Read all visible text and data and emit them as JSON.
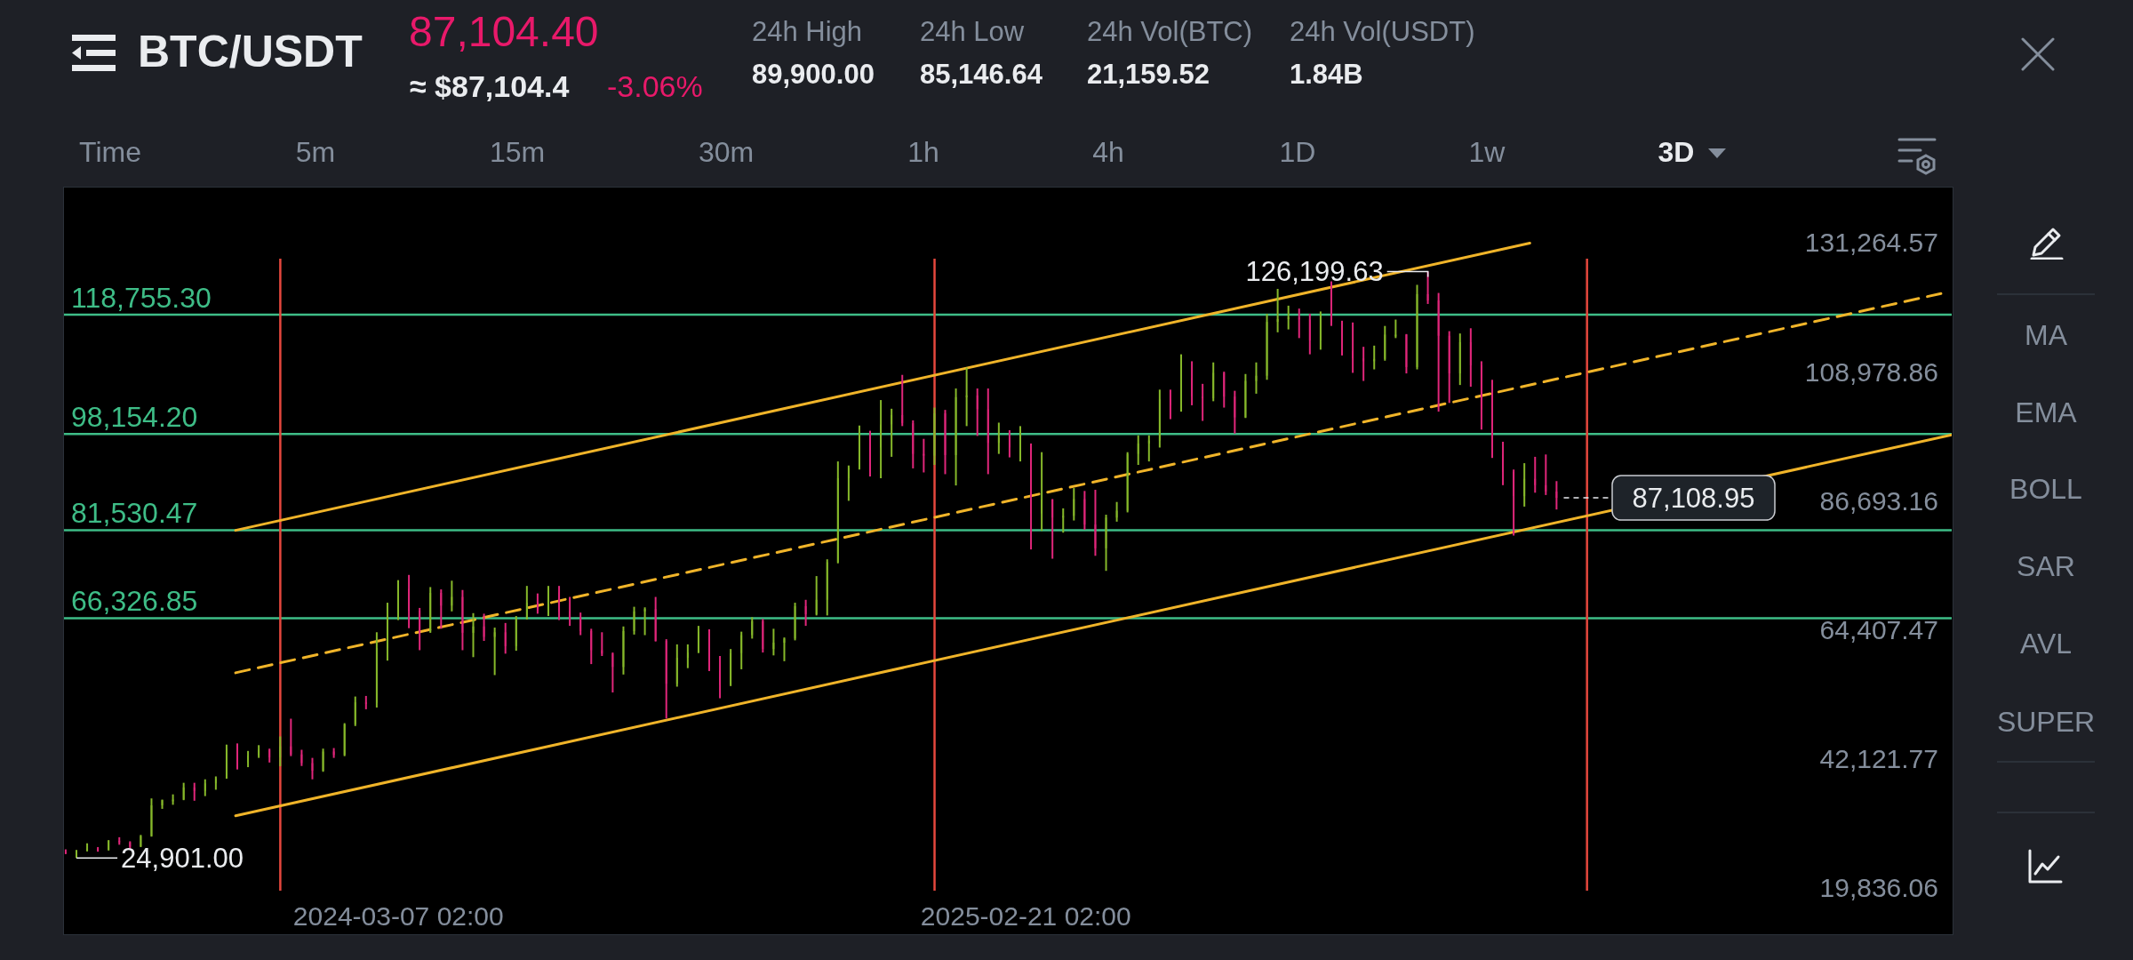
{
  "chart_data": {
    "type": "candlestick",
    "title": "BTC/USDT",
    "x": [
      "2023-09-03",
      "2023-09-09",
      "2023-09-15",
      "2023-09-21",
      "2023-09-27",
      "2023-10-03",
      "2023-10-09",
      "2023-10-15",
      "2023-10-21",
      "2023-10-27",
      "2023-11-02",
      "2023-11-08",
      "2023-11-14",
      "2023-11-20",
      "2023-11-26",
      "2023-12-02",
      "2023-12-08",
      "2023-12-14",
      "2023-12-20",
      "2023-12-26",
      "2024-01-01",
      "2024-01-07",
      "2024-01-13",
      "2024-01-19",
      "2024-01-25",
      "2024-01-31",
      "2024-02-06",
      "2024-02-12",
      "2024-02-18",
      "2024-02-24",
      "2024-03-01",
      "2024-03-07",
      "2024-03-13",
      "2024-03-19",
      "2024-03-25",
      "2024-03-31",
      "2024-04-06",
      "2024-04-12",
      "2024-04-18",
      "2024-04-24",
      "2024-04-30",
      "2024-05-06",
      "2024-05-12",
      "2024-05-18",
      "2024-05-24",
      "2024-05-30",
      "2024-06-05",
      "2024-06-11",
      "2024-06-17",
      "2024-06-23",
      "2024-06-29",
      "2024-07-05",
      "2024-07-11",
      "2024-07-17",
      "2024-07-23",
      "2024-07-29",
      "2024-08-04",
      "2024-08-10",
      "2024-08-16",
      "2024-08-22",
      "2024-08-28",
      "2024-09-03",
      "2024-09-09",
      "2024-09-15",
      "2024-09-21",
      "2024-09-27",
      "2024-10-03",
      "2024-10-09",
      "2024-10-15",
      "2024-10-21",
      "2024-10-27",
      "2024-11-02",
      "2024-11-08",
      "2024-11-14",
      "2024-11-20",
      "2024-11-26",
      "2024-12-02",
      "2024-12-08",
      "2024-12-14",
      "2024-12-20",
      "2024-12-26",
      "2025-01-01",
      "2025-01-07",
      "2025-01-13",
      "2025-01-19",
      "2025-01-25",
      "2025-01-31",
      "2025-02-06",
      "2025-02-12",
      "2025-02-18",
      "2025-02-24",
      "2025-03-02",
      "2025-03-08",
      "2025-03-14",
      "2025-03-20",
      "2025-03-26",
      "2025-04-01",
      "2025-04-07",
      "2025-04-13",
      "2025-04-19",
      "2025-04-25",
      "2025-05-01",
      "2025-05-07",
      "2025-05-13",
      "2025-05-19",
      "2025-05-25",
      "2025-05-31",
      "2025-06-06",
      "2025-06-12",
      "2025-06-18",
      "2025-06-24",
      "2025-06-30",
      "2025-07-06",
      "2025-07-12",
      "2025-07-18",
      "2025-07-24",
      "2025-07-30",
      "2025-08-05",
      "2025-08-11",
      "2025-08-17",
      "2025-08-23",
      "2025-08-29",
      "2025-09-04",
      "2025-09-10",
      "2025-09-16",
      "2025-09-22",
      "2025-09-28",
      "2025-10-04",
      "2025-10-10",
      "2025-10-16",
      "2025-10-22",
      "2025-10-28",
      "2025-11-03",
      "2025-11-09",
      "2025-11-15",
      "2025-11-21",
      "2025-11-27",
      "2025-12-03",
      "2025-12-09",
      "2025-12-15"
    ],
    "ohlc": [
      [
        25950,
        26400,
        25600,
        25900
      ],
      [
        25900,
        26300,
        24901,
        26200
      ],
      [
        26200,
        27450,
        26050,
        26550
      ],
      [
        26550,
        26800,
        26000,
        26350
      ],
      [
        26350,
        28000,
        26200,
        27900
      ],
      [
        27900,
        28500,
        27200,
        27600
      ],
      [
        27600,
        27800,
        26550,
        26900
      ],
      [
        26900,
        28900,
        26800,
        28700
      ],
      [
        28700,
        35200,
        28600,
        34000
      ],
      [
        34000,
        35000,
        33400,
        34900
      ],
      [
        34900,
        35900,
        34100,
        35000
      ],
      [
        35000,
        37900,
        34900,
        37100
      ],
      [
        37100,
        37900,
        34800,
        36500
      ],
      [
        36500,
        38500,
        35600,
        37800
      ],
      [
        37800,
        39000,
        36700,
        38700
      ],
      [
        38700,
        44500,
        38600,
        43800
      ],
      [
        43800,
        44700,
        40200,
        41400
      ],
      [
        41400,
        43400,
        40600,
        42600
      ],
      [
        42600,
        44400,
        42200,
        43600
      ],
      [
        43600,
        43800,
        41400,
        42300
      ],
      [
        42300,
        45900,
        40750,
        44200
      ],
      [
        44200,
        48970,
        42500,
        42800
      ],
      [
        42800,
        43600,
        40800,
        41300
      ],
      [
        41300,
        42200,
        38500,
        40000
      ],
      [
        40000,
        43800,
        39800,
        43300
      ],
      [
        43300,
        43900,
        42200,
        42700
      ],
      [
        42700,
        48200,
        42500,
        48000
      ],
      [
        48000,
        52800,
        47700,
        51800
      ],
      [
        51800,
        52900,
        50600,
        51700
      ],
      [
        51700,
        63900,
        50900,
        61200
      ],
      [
        61200,
        69000,
        59000,
        66800
      ],
      [
        66800,
        72900,
        66000,
        71400
      ],
      [
        71400,
        73800,
        64600,
        67600
      ],
      [
        67600,
        68100,
        60800,
        64000
      ],
      [
        64000,
        71700,
        63800,
        70700
      ],
      [
        70700,
        71300,
        64500,
        68500
      ],
      [
        68500,
        72800,
        67500,
        70000
      ],
      [
        70000,
        71200,
        60800,
        63800
      ],
      [
        63800,
        67200,
        59600,
        64900
      ],
      [
        64900,
        67100,
        62400,
        63100
      ],
      [
        63100,
        64700,
        56500,
        63900
      ],
      [
        63900,
        65500,
        60200,
        61500
      ],
      [
        61500,
        66700,
        60700,
        66200
      ],
      [
        66200,
        71900,
        66100,
        69000
      ],
      [
        69000,
        70600,
        67100,
        67600
      ],
      [
        67600,
        71900,
        66700,
        70800
      ],
      [
        70800,
        71900,
        66000,
        67500
      ],
      [
        67500,
        70000,
        65000,
        66400
      ],
      [
        66400,
        67300,
        63400,
        64100
      ],
      [
        64100,
        64500,
        58400,
        60800
      ],
      [
        60800,
        63900,
        59800,
        60200
      ],
      [
        60200,
        60400,
        53500,
        57900
      ],
      [
        57900,
        64900,
        56600,
        64100
      ],
      [
        64100,
        68300,
        63500,
        67500
      ],
      [
        67500,
        68200,
        63400,
        67900
      ],
      [
        67900,
        70000,
        62300,
        62400
      ],
      [
        62400,
        62700,
        49000,
        55000
      ],
      [
        55000,
        61800,
        54500,
        59500
      ],
      [
        59500,
        61800,
        57700,
        60400
      ],
      [
        60400,
        65000,
        60300,
        64000
      ],
      [
        64000,
        64400,
        57200,
        57300
      ],
      [
        57300,
        59800,
        52500,
        54800
      ],
      [
        54800,
        61000,
        54600,
        60300
      ],
      [
        60300,
        64000,
        57500,
        63400
      ],
      [
        63400,
        66500,
        62800,
        65800
      ],
      [
        65800,
        66200,
        60400,
        61000
      ],
      [
        61000,
        64500,
        59900,
        62100
      ],
      [
        62100,
        63000,
        58900,
        62800
      ],
      [
        62800,
        69000,
        62500,
        68400
      ],
      [
        68400,
        69500,
        65000,
        67000
      ],
      [
        67000,
        73600,
        66800,
        69500
      ],
      [
        69500,
        76500,
        66800,
        76000
      ],
      [
        76000,
        93400,
        75800,
        90500
      ],
      [
        90500,
        92700,
        86600,
        92300
      ],
      [
        92300,
        99600,
        92000,
        97700
      ],
      [
        97700,
        98700,
        90800,
        95800
      ],
      [
        95800,
        104000,
        90500,
        99800
      ],
      [
        99800,
        102500,
        94200,
        101400
      ],
      [
        101400,
        108350,
        99500,
        100000
      ],
      [
        100000,
        100500,
        92200,
        94700
      ],
      [
        94700,
        97300,
        91500,
        94400
      ],
      [
        94400,
        102700,
        92800,
        101700
      ],
      [
        101700,
        102300,
        91200,
        94500
      ],
      [
        94500,
        106000,
        89250,
        104500
      ],
      [
        104500,
        109600,
        99500,
        104800
      ],
      [
        104800,
        106000,
        97800,
        102400
      ],
      [
        102400,
        106000,
        91200,
        96600
      ],
      [
        96600,
        100100,
        94700,
        97500
      ],
      [
        97500,
        98800,
        94100,
        95800
      ],
      [
        95800,
        99500,
        93400,
        96300
      ],
      [
        96300,
        96500,
        78200,
        84400
      ],
      [
        84400,
        95000,
        81400,
        86800
      ],
      [
        86800,
        86900,
        76600,
        83700
      ],
      [
        83700,
        85300,
        81100,
        84000
      ],
      [
        84000,
        88800,
        83200,
        86900
      ],
      [
        86900,
        88300,
        81600,
        82500
      ],
      [
        82500,
        88500,
        77100,
        78400
      ],
      [
        78400,
        84200,
        74500,
        83700
      ],
      [
        83700,
        86400,
        83000,
        84900
      ],
      [
        84900,
        95000,
        84600,
        94700
      ],
      [
        94700,
        97900,
        92800,
        96500
      ],
      [
        96500,
        97900,
        93400,
        97000
      ],
      [
        97000,
        105800,
        95800,
        104100
      ],
      [
        104100,
        105800,
        100700,
        103100
      ],
      [
        103100,
        111900,
        102000,
        107800
      ],
      [
        107800,
        110700,
        103100,
        104600
      ],
      [
        104600,
        106800,
        100400,
        104300
      ],
      [
        104300,
        110500,
        103800,
        108700
      ],
      [
        108700,
        108900,
        102700,
        104600
      ],
      [
        104600,
        105600,
        98200,
        101000
      ],
      [
        101000,
        108500,
        100900,
        107300
      ],
      [
        107300,
        110500,
        105100,
        108200
      ],
      [
        108200,
        118900,
        107500,
        117500
      ],
      [
        117500,
        123200,
        115700,
        118000
      ],
      [
        118000,
        120300,
        116200,
        118300
      ],
      [
        118300,
        119800,
        114700,
        117900
      ],
      [
        117900,
        118900,
        111900,
        114300
      ],
      [
        114300,
        119300,
        112700,
        118700
      ],
      [
        118700,
        124500,
        116800,
        117400
      ],
      [
        117400,
        117700,
        111700,
        112500
      ],
      [
        112500,
        117400,
        108700,
        111200
      ],
      [
        111200,
        113200,
        107300,
        110700
      ],
      [
        110700,
        113400,
        109300,
        111100
      ],
      [
        111100,
        116800,
        110800,
        115300
      ],
      [
        115300,
        117900,
        114700,
        115300
      ],
      [
        115300,
        115400,
        108600,
        109700
      ],
      [
        109700,
        123900,
        109300,
        122300
      ],
      [
        122300,
        126199.63,
        120600,
        121200
      ],
      [
        121200,
        122500,
        102000,
        115100
      ],
      [
        115100,
        115900,
        103500,
        108600
      ],
      [
        108600,
        115500,
        106600,
        114000
      ],
      [
        114000,
        116400,
        106300,
        110000
      ],
      [
        110000,
        110700,
        98900,
        102300
      ],
      [
        102300,
        107500,
        94000,
        94600
      ],
      [
        94600,
        96800,
        89300,
        91600
      ],
      [
        91600,
        92000,
        80600,
        87400
      ],
      [
        87400,
        93100,
        85600,
        90400
      ],
      [
        90400,
        94200,
        88000,
        89300
      ],
      [
        89300,
        94600,
        87600,
        88200
      ],
      [
        88200,
        90000,
        85100,
        87108.95
      ]
    ],
    "colors": [
      "#e0267a",
      "#86b82a",
      "#86b82a",
      "#e0267a",
      "#86b82a",
      "#e0267a",
      "#e0267a",
      "#86b82a",
      "#86b82a",
      "#86b82a",
      "#86b82a",
      "#86b82a",
      "#e0267a",
      "#86b82a",
      "#86b82a",
      "#86b82a",
      "#e0267a",
      "#86b82a",
      "#86b82a",
      "#e0267a",
      "#86b82a",
      "#e0267a",
      "#e0267a",
      "#e0267a",
      "#86b82a",
      "#e0267a",
      "#86b82a",
      "#86b82a",
      "#e0267a",
      "#86b82a",
      "#86b82a",
      "#86b82a",
      "#e0267a",
      "#e0267a",
      "#86b82a",
      "#e0267a",
      "#86b82a",
      "#e0267a",
      "#86b82a",
      "#e0267a",
      "#86b82a",
      "#e0267a",
      "#86b82a",
      "#86b82a",
      "#e0267a",
      "#86b82a",
      "#e0267a",
      "#e0267a",
      "#e0267a",
      "#e0267a",
      "#e0267a",
      "#e0267a",
      "#86b82a",
      "#86b82a",
      "#86b82a",
      "#e0267a",
      "#e0267a",
      "#86b82a",
      "#86b82a",
      "#86b82a",
      "#e0267a",
      "#e0267a",
      "#86b82a",
      "#86b82a",
      "#86b82a",
      "#e0267a",
      "#86b82a",
      "#86b82a",
      "#86b82a",
      "#e0267a",
      "#86b82a",
      "#86b82a",
      "#86b82a",
      "#86b82a",
      "#86b82a",
      "#e0267a",
      "#86b82a",
      "#86b82a",
      "#e0267a",
      "#e0267a",
      "#e0267a",
      "#86b82a",
      "#e0267a",
      "#86b82a",
      "#86b82a",
      "#e0267a",
      "#e0267a",
      "#86b82a",
      "#e0267a",
      "#86b82a",
      "#e0267a",
      "#86b82a",
      "#e0267a",
      "#86b82a",
      "#86b82a",
      "#e0267a",
      "#e0267a",
      "#86b82a",
      "#86b82a",
      "#86b82a",
      "#86b82a",
      "#86b82a",
      "#86b82a",
      "#e0267a",
      "#86b82a",
      "#e0267a",
      "#e0267a",
      "#86b82a",
      "#e0267a",
      "#e0267a",
      "#86b82a",
      "#86b82a",
      "#86b82a",
      "#86b82a",
      "#86b82a",
      "#e0267a",
      "#e0267a",
      "#86b82a",
      "#e0267a",
      "#e0267a",
      "#e0267a",
      "#e0267a",
      "#86b82a",
      "#86b82a",
      "#86b82a",
      "#e0267a",
      "#86b82a",
      "#e0267a",
      "#e0267a",
      "#e0267a",
      "#86b82a",
      "#e0267a",
      "#e0267a",
      "#e0267a",
      "#e0267a",
      "#e0267a",
      "#86b82a",
      "#e0267a",
      "#e0267a",
      "#e0267a"
    ],
    "series": [
      {
        "type": "line",
        "color": "#f0b429",
        "x": [
          "2023-12-07",
          "2025-11-30"
        ],
        "values": [
          81500,
          131100
        ]
      },
      {
        "type": "line",
        "color": "#f0b429",
        "line_style": "dashed",
        "x": [
          "2023-12-07",
          "2026-07-18"
        ],
        "values": [
          56900,
          122400
        ]
      },
      {
        "type": "line",
        "color": "#f0b429",
        "x": [
          "2023-12-07",
          "2026-07-24"
        ],
        "values": [
          32200,
          98000
        ]
      }
    ],
    "xlim": [
      "2023-09-02",
      "2026-07-24"
    ],
    "ylim": [
      11900,
      140700
    ],
    "xticks": [
      {
        "value": "2024-03-07T02:00",
        "label": "2024-03-07 02:00"
      },
      {
        "value": "2025-02-21T02:00",
        "label": "2025-02-21 02:00"
      }
    ],
    "yticks": [
      {
        "value": 19836.06,
        "label": "19,836.06"
      },
      {
        "value": 42121.77,
        "label": "42,121.77"
      },
      {
        "value": 64407.47,
        "label": "64,407.47"
      },
      {
        "value": 86693.16,
        "label": "86,693.16"
      },
      {
        "value": 108978.86,
        "label": "108,978.86"
      },
      {
        "value": 131264.57,
        "label": "131,264.57"
      }
    ],
    "ref_lines": [
      {
        "axis": "y",
        "value": 118755.3,
        "label": "118,755.30",
        "color": "#3ebd87"
      },
      {
        "axis": "y",
        "value": 98154.2,
        "label": "98,154.20",
        "color": "#3ebd87"
      },
      {
        "axis": "y",
        "value": 81530.47,
        "label": "81,530.47",
        "color": "#3ebd87"
      },
      {
        "axis": "y",
        "value": 66326.85,
        "label": "66,326.85",
        "color": "#3ebd87"
      },
      {
        "axis": "x",
        "value": "2024-01-01",
        "color": "#e5473d"
      },
      {
        "axis": "x",
        "value": "2025-01-01",
        "color": "#e5473d"
      },
      {
        "axis": "x",
        "value": "2026-01-01",
        "color": "#e5473d"
      }
    ],
    "annotations": [
      {
        "text": "126,199.63",
        "x": "2025-10-04",
        "y": 126199.63
      },
      {
        "text": "24,901.00",
        "x": "2023-09-09",
        "y": 24901
      },
      {
        "text": "87,108.95",
        "x": "2025-12-15",
        "y": 87108.95
      },
      "87,104.40",
      "≈ $87,104.4",
      "-3.06%",
      "24h High",
      "89,900.00",
      "24h Low",
      "85,146.64",
      "24h Vol(BTC)",
      "21,159.52",
      "24h Vol(USDT)",
      "1.84B",
      "Time",
      "5m",
      "15m",
      "30m",
      "1h",
      "4h",
      "1D",
      "1w",
      "3D",
      "MA",
      "EMA",
      "BOLL",
      "SAR",
      "AVL",
      "SUPER"
    ]
  }
}
